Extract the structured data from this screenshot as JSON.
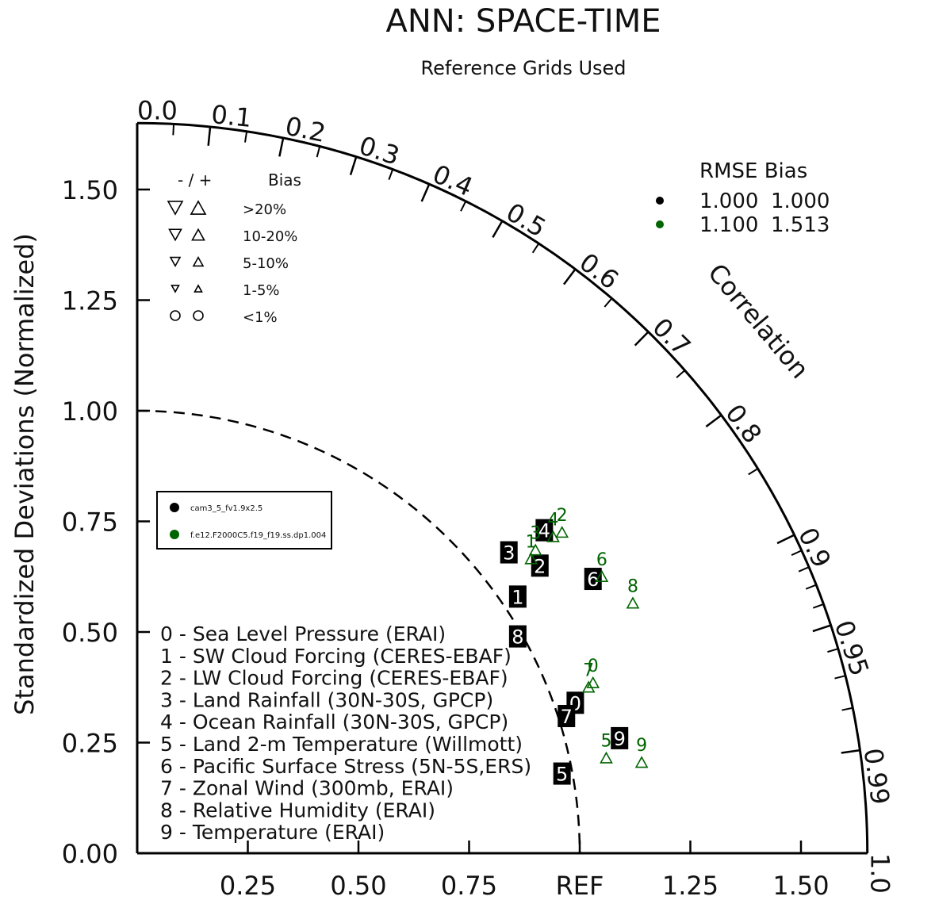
{
  "title": "ANN: SPACE-TIME",
  "subtitle": "Reference Grids Used",
  "ylabel": "Standardized Deviations (Normalized)",
  "correlation_label": "Correlation",
  "colors": {
    "model1": "#000000",
    "model2": "#006400"
  },
  "chart_data": {
    "type": "scatter",
    "subtype": "taylor-diagram",
    "title": "ANN: SPACE-TIME",
    "subtitle": "Reference Grids Used",
    "ylabel": "Standardized Deviations (Normalized)",
    "arc_label": "Correlation",
    "y_ticks": [
      "0.00",
      "0.25",
      "0.50",
      "0.75",
      "1.00",
      "1.25",
      "1.50"
    ],
    "x_ticks": [
      "0.25",
      "0.50",
      "0.75",
      "REF",
      "1.25",
      "1.50"
    ],
    "correlation_ticks": [
      "0.0",
      "0.1",
      "0.2",
      "0.3",
      "0.4",
      "0.5",
      "0.6",
      "0.7",
      "0.8",
      "0.9",
      "0.95",
      "0.99",
      "1.0"
    ],
    "max_std": 1.65,
    "variables": [
      "0 - Sea Level Pressure (ERAI)",
      "1 - SW Cloud Forcing (CERES-EBAF)",
      "2 - LW Cloud Forcing (CERES-EBAF)",
      "3 - Land Rainfall (30N-30S, GPCP)",
      "4 - Ocean Rainfall (30N-30S, GPCP)",
      "5 - Land 2-m Temperature (Willmott)",
      "6 - Pacific Surface Stress (5N-5S,ERS)",
      "7 - Zonal Wind (300mb, ERAI)",
      "8 - Relative Humidity (ERAI)",
      "9 - Temperature (ERAI)"
    ],
    "bias_legend": {
      "header_sign": "- / +",
      "header_bias": "Bias",
      "rows": [
        ">20%",
        "10-20%",
        "5-10%",
        "1-5%",
        "<1%"
      ]
    },
    "rmse_table": {
      "header": "RMSE  Bias",
      "rows": [
        {
          "rmse": "1.000",
          "bias": "1.000",
          "color": "#000000"
        },
        {
          "rmse": "1.100",
          "bias": "1.513",
          "color": "#006400"
        }
      ]
    },
    "series": [
      {
        "name": "cam3_5_fv1.9x2.5",
        "color": "#000000",
        "points": [
          {
            "id": "0",
            "x": 0.99,
            "y": 0.34
          },
          {
            "id": "1",
            "x": 0.86,
            "y": 0.58
          },
          {
            "id": "2",
            "x": 0.91,
            "y": 0.65
          },
          {
            "id": "3",
            "x": 0.84,
            "y": 0.68
          },
          {
            "id": "4",
            "x": 0.92,
            "y": 0.73
          },
          {
            "id": "5",
            "x": 0.96,
            "y": 0.18
          },
          {
            "id": "6",
            "x": 1.03,
            "y": 0.62
          },
          {
            "id": "7",
            "x": 0.97,
            "y": 0.31
          },
          {
            "id": "8",
            "x": 0.86,
            "y": 0.49
          },
          {
            "id": "9",
            "x": 1.09,
            "y": 0.26
          }
        ]
      },
      {
        "name": "f.e12.F2000C5.f19_f19.ss.dp1.004",
        "color": "#006400",
        "points": [
          {
            "id": "0",
            "x": 1.03,
            "y": 0.4
          },
          {
            "id": "1",
            "x": 0.89,
            "y": 0.68
          },
          {
            "id": "2",
            "x": 0.96,
            "y": 0.74
          },
          {
            "id": "3",
            "x": 0.9,
            "y": 0.7
          },
          {
            "id": "4",
            "x": 0.94,
            "y": 0.73
          },
          {
            "id": "5",
            "x": 1.06,
            "y": 0.23
          },
          {
            "id": "6",
            "x": 1.05,
            "y": 0.64
          },
          {
            "id": "7",
            "x": 1.02,
            "y": 0.39
          },
          {
            "id": "8",
            "x": 1.12,
            "y": 0.58
          },
          {
            "id": "9",
            "x": 1.14,
            "y": 0.22
          }
        ]
      }
    ],
    "legend": [
      "cam3_5_fv1.9x2.5",
      "f.e12.F2000C5.f19_f19.ss.dp1.004"
    ]
  }
}
